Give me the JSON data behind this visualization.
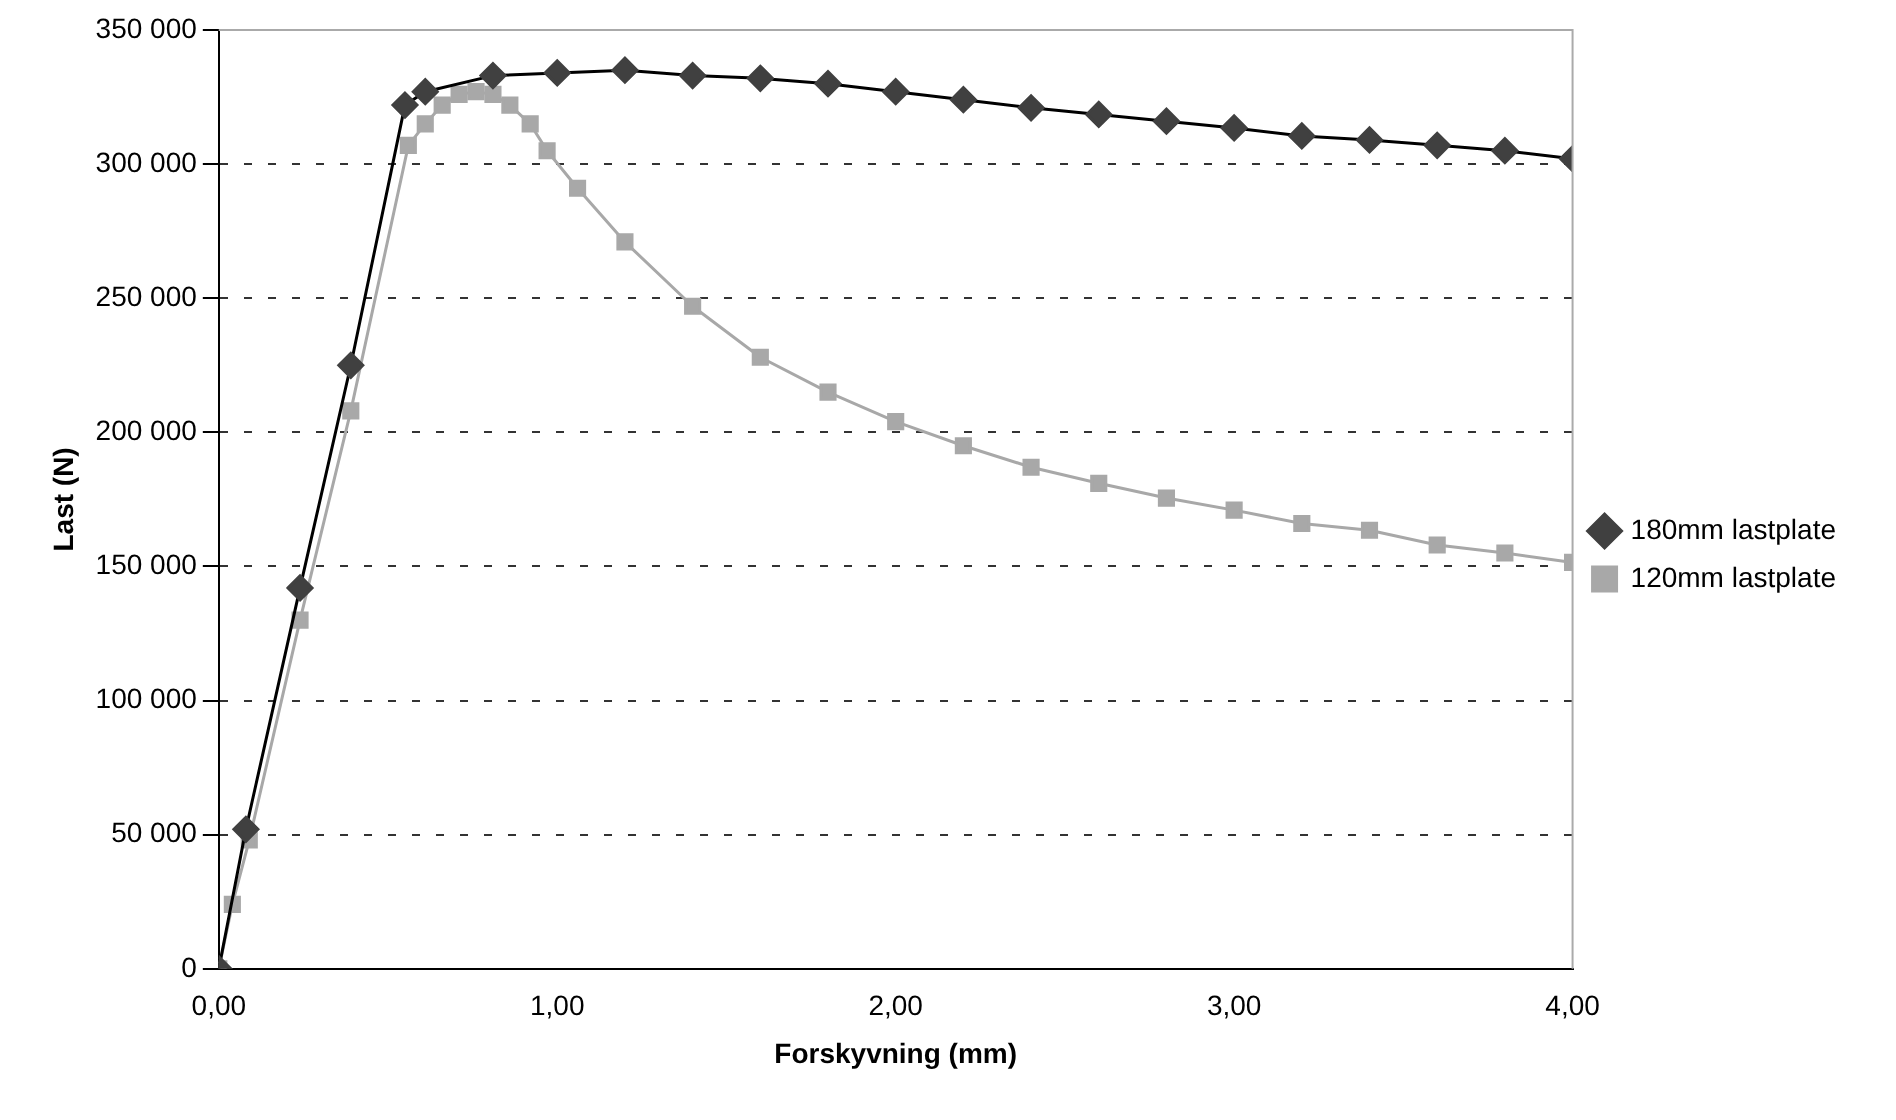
{
  "chart_data": {
    "type": "line",
    "xlabel": "Forskyvning (mm)",
    "ylabel": "Last (N)",
    "xlim": [
      0,
      4
    ],
    "xticks": [
      {
        "value": 0,
        "label": "0,00"
      },
      {
        "value": 1,
        "label": "1,00"
      },
      {
        "value": 2,
        "label": "2,00"
      },
      {
        "value": 3,
        "label": "3,00"
      },
      {
        "value": 4,
        "label": "4,00"
      }
    ],
    "ylim": [
      0,
      350000
    ],
    "yticks": [
      0,
      {
        "value": 50000,
        "label": "50 000"
      },
      {
        "value": 100000,
        "label": "100 000"
      },
      {
        "value": 150000,
        "label": "150 000"
      },
      {
        "value": 200000,
        "label": "200 000"
      },
      {
        "value": 250000,
        "label": "250 000"
      },
      {
        "value": 300000,
        "label": "300 000"
      },
      {
        "value": 350000,
        "label": "350 000"
      }
    ],
    "grid": "y",
    "legend": "right",
    "line_style": "solid",
    "series": [
      {
        "name": "180mm lastplate",
        "color": "#404040",
        "marker": "diamond",
        "x": [
          0,
          0.08,
          0.24,
          0.39,
          0.55,
          0.61,
          0.81,
          1.0,
          1.2,
          1.4,
          1.6,
          1.8,
          2.0,
          2.2,
          2.4,
          2.6,
          2.8,
          3.0,
          3.2,
          3.4,
          3.6,
          3.8,
          4.0
        ],
        "values": [
          0,
          52000,
          142000,
          225000,
          322000,
          327000,
          333000,
          334000,
          335000,
          333000,
          332000,
          330000,
          327000,
          324000,
          321000,
          318500,
          316000,
          313500,
          310500,
          309000,
          307000,
          305000,
          302000
        ]
      },
      {
        "name": "120mm lastplate",
        "color": "#a8a8a8",
        "marker": "square",
        "x": [
          0,
          0.04,
          0.09,
          0.24,
          0.39,
          0.56,
          0.61,
          0.66,
          0.71,
          0.76,
          0.81,
          0.86,
          0.92,
          0.97,
          1.06,
          1.2,
          1.4,
          1.6,
          1.8,
          2.0,
          2.2,
          2.4,
          2.6,
          2.8,
          3.0,
          3.2,
          3.4,
          3.6,
          3.8,
          4.0
        ],
        "values": [
          0,
          24000,
          48000,
          130000,
          208000,
          307000,
          315000,
          322000,
          326000,
          327000,
          326000,
          322000,
          315000,
          305000,
          291000,
          271000,
          247000,
          228000,
          215000,
          204000,
          195000,
          187000,
          181000,
          175500,
          171000,
          166000,
          163500,
          158000,
          155000,
          151500
        ]
      }
    ]
  }
}
